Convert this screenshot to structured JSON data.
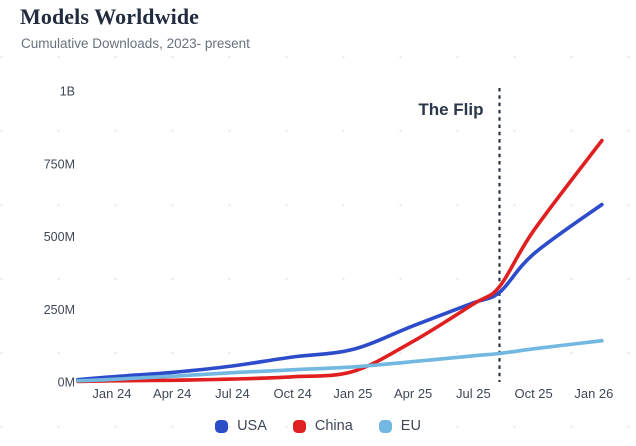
{
  "chart_data": {
    "type": "line",
    "title": "Models Worldwide",
    "subtitle": "Cumulative Downloads, 2023- present",
    "value_unit": "downloads (millions)",
    "x_axis": {
      "unit": "months since Nov 2023",
      "range": [
        0,
        26.4
      ],
      "grid": false,
      "ticks": [
        {
          "t": 2,
          "label": "Jan 24"
        },
        {
          "t": 5,
          "label": "Apr 24"
        },
        {
          "t": 8,
          "label": "Jul 24"
        },
        {
          "t": 11,
          "label": "Oct 24"
        },
        {
          "t": 14,
          "label": "Jan 25"
        },
        {
          "t": 17,
          "label": "Apr 25"
        },
        {
          "t": 20,
          "label": "Jul 25"
        },
        {
          "t": 23,
          "label": "Oct 25"
        },
        {
          "t": 26,
          "label": "Jan 26"
        }
      ]
    },
    "y_axis": {
      "range": [
        0,
        1000
      ],
      "grid": false,
      "ticks": [
        {
          "v": 0,
          "label": "0M"
        },
        {
          "v": 250,
          "label": "250M"
        },
        {
          "v": 500,
          "label": "500M"
        },
        {
          "v": 750,
          "label": "750M"
        },
        {
          "v": 1000,
          "label": "1B"
        }
      ]
    },
    "series": [
      {
        "name": "USA",
        "color": "#2d4cca",
        "points": [
          [
            0.3,
            8
          ],
          [
            2,
            18
          ],
          [
            5,
            33
          ],
          [
            8,
            55
          ],
          [
            11,
            86
          ],
          [
            14,
            112
          ],
          [
            17,
            193
          ],
          [
            20,
            272
          ],
          [
            21.3,
            308
          ],
          [
            23,
            440
          ],
          [
            26.4,
            610
          ]
        ]
      },
      {
        "name": "China",
        "color": "#e02020",
        "points": [
          [
            0.3,
            2
          ],
          [
            2,
            4
          ],
          [
            5,
            6
          ],
          [
            8,
            10
          ],
          [
            11,
            18
          ],
          [
            14,
            36
          ],
          [
            17,
            140
          ],
          [
            20,
            268
          ],
          [
            21.3,
            328
          ],
          [
            23,
            520
          ],
          [
            26.4,
            830
          ]
        ]
      },
      {
        "name": "EU",
        "color": "#72b8e0",
        "points": [
          [
            0.3,
            4
          ],
          [
            2,
            9
          ],
          [
            5,
            20
          ],
          [
            8,
            32
          ],
          [
            11,
            42
          ],
          [
            14,
            52
          ],
          [
            17,
            70
          ],
          [
            20,
            90
          ],
          [
            21.3,
            98
          ],
          [
            23,
            114
          ],
          [
            26.4,
            142
          ]
        ]
      }
    ],
    "annotation": {
      "label": "The Flip",
      "t": 21.3,
      "style": "dashed-vertical-line",
      "color": "#2b3440"
    },
    "legend": {
      "position": "bottom",
      "entries": [
        "USA",
        "China",
        "EU"
      ]
    }
  }
}
